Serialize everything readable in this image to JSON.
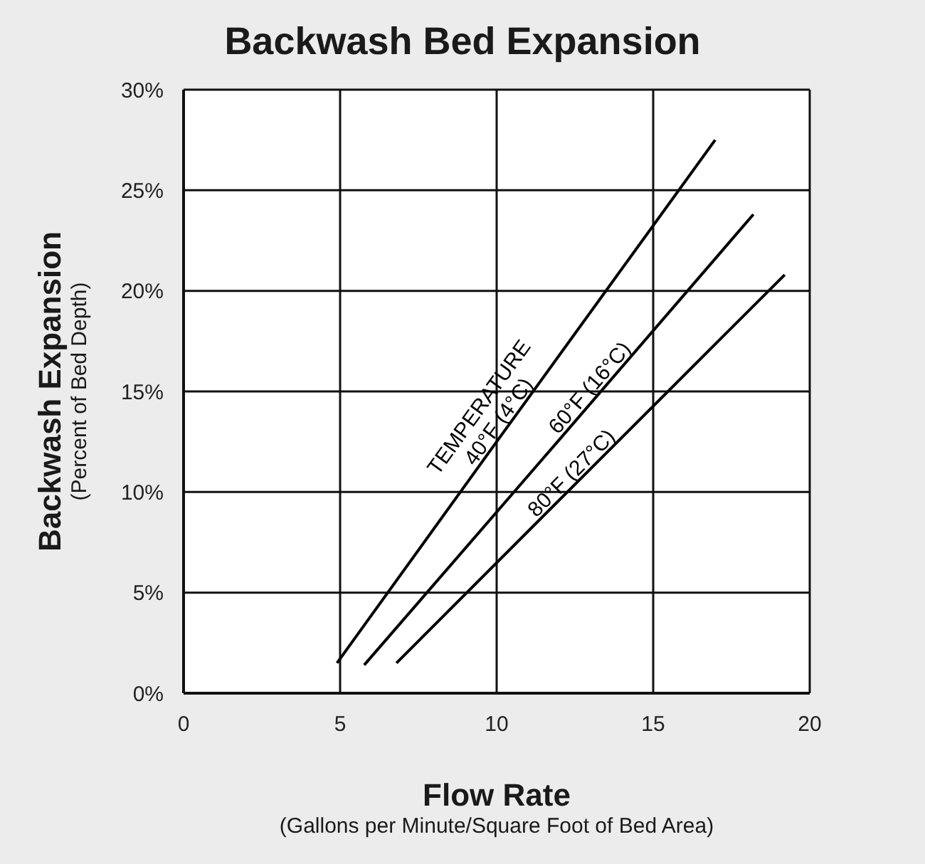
{
  "chart_data": {
    "type": "line",
    "title": "Backwash Bed Expansion",
    "xlabel": "Flow Rate\n(Gallons per Minute/Square Foot of Bed Area)",
    "ylabel": "Backwash Expansion\n(Percent of Bed Depth)",
    "annotations": [
      "TEMPERATURE"
    ],
    "series": [
      {
        "name": "40°F (4°C)",
        "color": "#000000",
        "x": [
          4.9,
          10.0,
          16.98
        ],
        "values": [
          1.5,
          12.5,
          27.5
        ]
      },
      {
        "name": "60°F (16°C)",
        "color": "#000000",
        "x": [
          5.77,
          12.0,
          18.2
        ],
        "values": [
          1.4,
          12.6,
          23.8
        ]
      },
      {
        "name": "80°F (27°C)",
        "color": "#000000",
        "x": [
          6.8,
          12.9,
          19.2
        ],
        "values": [
          1.5,
          11.0,
          20.8
        ]
      }
    ],
    "xlim": [
      0,
      20
    ],
    "xticks": [
      0,
      5,
      10,
      15,
      20
    ],
    "ylim": [
      0,
      30
    ],
    "yticks": [
      {
        "value": 0,
        "label": "0%"
      },
      {
        "value": 5,
        "label": "5%"
      },
      {
        "value": 10,
        "label": "10%"
      },
      {
        "value": 15,
        "label": "15%"
      },
      {
        "value": 20,
        "label": "20%"
      },
      {
        "value": 25,
        "label": "25%"
      },
      {
        "value": 30,
        "label": "30%"
      }
    ],
    "grid": true,
    "marker": "none",
    "line_style": "solid",
    "legend": false
  }
}
